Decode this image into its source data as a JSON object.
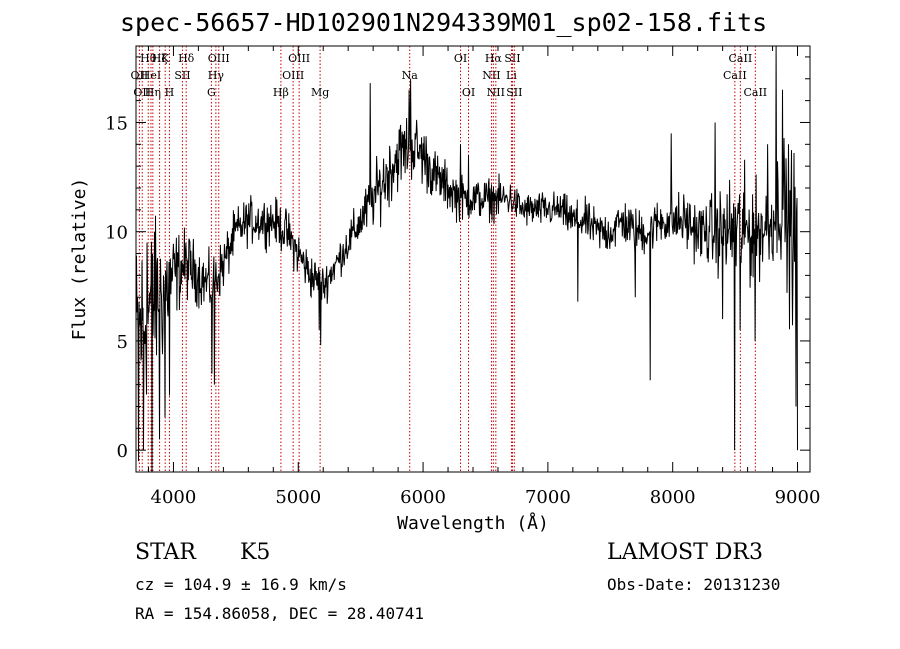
{
  "header": {
    "title": "spec-56657-HD102901N294339M01_sp02-158.fits"
  },
  "info": {
    "class": "STAR",
    "subclass": "K5",
    "survey": "LAMOST DR3",
    "cz": "cz = 104.9 ± 16.9 km/s",
    "obs_date": "Obs-Date: 20131230",
    "coords": "RA = 154.86058, DEC =  28.40741"
  },
  "colors": {
    "spectrum": "#000000",
    "line_markers": "#cc0000",
    "axes": "#000000"
  },
  "chart_data": {
    "type": "line",
    "title": "spec-56657-HD102901N294339M01_sp02-158.fits",
    "xlabel": "Wavelength (Å)",
    "ylabel": "Flux (relative)",
    "xlim": [
      3700,
      9100
    ],
    "ylim": [
      -1,
      18.5
    ],
    "xticks": [
      4000,
      5000,
      6000,
      7000,
      8000,
      9000
    ],
    "yticks": [
      0,
      5,
      10,
      15
    ],
    "continuum": {
      "x": [
        3700,
        3800,
        3900,
        4000,
        4100,
        4200,
        4300,
        4400,
        4500,
        4600,
        4700,
        4800,
        4900,
        5000,
        5100,
        5200,
        5300,
        5400,
        5500,
        5600,
        5700,
        5800,
        5900,
        6000,
        6100,
        6200,
        6300,
        6400,
        6500,
        6600,
        6700,
        6800,
        6900,
        7000,
        7100,
        7200,
        7300,
        7400,
        7500,
        7600,
        7700,
        7800,
        7900,
        8000,
        8100,
        8200,
        8300,
        8400,
        8500,
        8600,
        8700,
        8800,
        8850,
        8900,
        8950,
        9000
      ],
      "y": [
        5.0,
        6.5,
        7.0,
        8.0,
        8.5,
        8.0,
        7.5,
        8.5,
        10.0,
        10.5,
        10.5,
        10.5,
        10.0,
        9.0,
        8.0,
        7.5,
        8.5,
        9.5,
        10.5,
        11.5,
        12.5,
        13.5,
        14.0,
        13.5,
        12.5,
        12.0,
        11.5,
        11.5,
        11.5,
        11.5,
        11.5,
        11.0,
        11.0,
        11.0,
        11.0,
        10.5,
        10.5,
        10.0,
        10.0,
        10.5,
        10.0,
        10.0,
        10.5,
        10.5,
        10.5,
        10.0,
        10.0,
        10.0,
        10.0,
        10.0,
        10.0,
        10.5,
        11.5,
        11.0,
        10.0,
        9.5
      ]
    },
    "noise_amplitude": [
      3.5,
      3.0,
      2.5,
      1.5,
      1.2,
      1.0,
      1.0,
      0.9,
      0.8,
      0.8,
      0.8,
      0.8,
      0.8,
      0.8,
      0.8,
      0.7,
      0.6,
      0.7,
      0.8,
      1.0,
      1.2,
      1.2,
      1.2,
      1.1,
      0.9,
      0.8,
      0.8,
      0.7,
      0.7,
      0.7,
      0.6,
      0.6,
      0.6,
      0.6,
      0.6,
      0.7,
      0.7,
      0.7,
      0.8,
      0.8,
      0.8,
      0.8,
      0.8,
      0.9,
      1.0,
      1.0,
      1.2,
      1.5,
      2.0,
      2.0,
      1.5,
      1.5,
      2.0,
      2.5,
      3.0,
      3.0
    ],
    "features": [
      {
        "x": 3720,
        "y": -0.5
      },
      {
        "x": 3760,
        "y": 0.0
      },
      {
        "x": 3790,
        "y": 9.5
      },
      {
        "x": 3830,
        "y": -1.0
      },
      {
        "x": 3850,
        "y": 10.0
      },
      {
        "x": 3890,
        "y": 0.5
      },
      {
        "x": 3934,
        "y": 1.5
      },
      {
        "x": 3968,
        "y": 2.5
      },
      {
        "x": 4310,
        "y": 3.5
      },
      {
        "x": 4330,
        "y": 3.0
      },
      {
        "x": 5170,
        "y": 5.5
      },
      {
        "x": 5180,
        "y": 4.8
      },
      {
        "x": 5577,
        "y": 16.8
      },
      {
        "x": 5890,
        "y": 16.5
      },
      {
        "x": 5900,
        "y": 17.0
      },
      {
        "x": 6300,
        "y": 14.0
      },
      {
        "x": 6364,
        "y": 13.5
      },
      {
        "x": 7240,
        "y": 6.8
      },
      {
        "x": 7700,
        "y": 7.0
      },
      {
        "x": 7820,
        "y": 3.2
      },
      {
        "x": 7990,
        "y": 14.5
      },
      {
        "x": 8340,
        "y": 15.0
      },
      {
        "x": 8400,
        "y": 6.0
      },
      {
        "x": 8498,
        "y": 0.0
      },
      {
        "x": 8542,
        "y": 5.5
      },
      {
        "x": 8662,
        "y": 5.0
      },
      {
        "x": 8760,
        "y": 14.0
      },
      {
        "x": 8830,
        "y": 18.5
      },
      {
        "x": 8880,
        "y": 16.5
      },
      {
        "x": 8930,
        "y": 14.0
      },
      {
        "x": 8990,
        "y": 2.0
      },
      {
        "x": 9000,
        "y": 0.0
      }
    ],
    "line_markers": [
      {
        "wave": 3727,
        "label": "OII",
        "row": 2
      },
      {
        "wave": 3750,
        "label": "OII",
        "row": 3
      },
      {
        "wave": 3798,
        "label": "Hθ",
        "row": 1
      },
      {
        "wave": 3820,
        "label": "HeI",
        "row": 2
      },
      {
        "wave": 3835,
        "label": "Hη",
        "row": 3
      },
      {
        "wave": 3889,
        "label": "Hζ",
        "row": 1
      },
      {
        "wave": 3934,
        "label": "K",
        "row": 1
      },
      {
        "wave": 3968,
        "label": "H",
        "row": 3
      },
      {
        "wave": 4072,
        "label": "SII",
        "row": 2
      },
      {
        "wave": 4102,
        "label": "Hδ",
        "row": 1
      },
      {
        "wave": 4304,
        "label": "G",
        "row": 3
      },
      {
        "wave": 4340,
        "label": "Hγ",
        "row": 2
      },
      {
        "wave": 4363,
        "label": "OIII",
        "row": 1
      },
      {
        "wave": 4861,
        "label": "Hβ",
        "row": 3
      },
      {
        "wave": 4959,
        "label": "OIII",
        "row": 2
      },
      {
        "wave": 5007,
        "label": "OIII",
        "row": 1
      },
      {
        "wave": 5175,
        "label": "Mg",
        "row": 3
      },
      {
        "wave": 5893,
        "label": "Na",
        "row": 2
      },
      {
        "wave": 6300,
        "label": "OI",
        "row": 1
      },
      {
        "wave": 6364,
        "label": "OI",
        "row": 3
      },
      {
        "wave": 6548,
        "label": "NII",
        "row": 2
      },
      {
        "wave": 6563,
        "label": "Hα",
        "row": 1
      },
      {
        "wave": 6583,
        "label": "NII",
        "row": 3
      },
      {
        "wave": 6708,
        "label": "Li",
        "row": 2
      },
      {
        "wave": 6716,
        "label": "SII",
        "row": 1
      },
      {
        "wave": 6731,
        "label": "SII",
        "row": 3
      },
      {
        "wave": 8498,
        "label": "CaII",
        "row": 2
      },
      {
        "wave": 8542,
        "label": "CaII",
        "row": 1
      },
      {
        "wave": 8662,
        "label": "CaII",
        "row": 3
      }
    ]
  }
}
